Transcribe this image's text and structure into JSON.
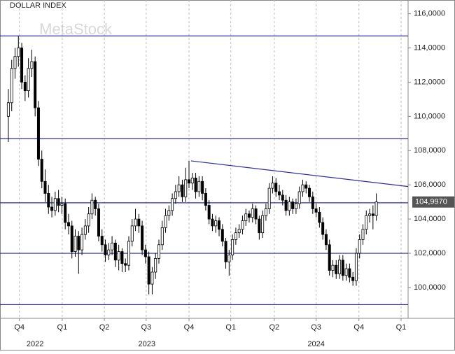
{
  "chart_data": {
    "type": "candlestick",
    "title": "DOLLAR INDEX",
    "watermark": "MetaStock",
    "ohlc": [
      [
        110.0,
        111.6,
        108.5,
        110.8
      ],
      [
        110.8,
        113.3,
        110.3,
        112.8
      ],
      [
        112.8,
        114.0,
        112.2,
        113.5
      ],
      [
        113.5,
        114.7,
        112.9,
        114.0
      ],
      [
        114.0,
        114.3,
        111.6,
        112.0
      ],
      [
        112.0,
        112.4,
        110.9,
        111.5
      ],
      [
        111.5,
        113.4,
        111.1,
        112.8
      ],
      [
        112.8,
        113.9,
        112.3,
        113.2
      ],
      [
        113.2,
        113.5,
        110.0,
        110.5
      ],
      [
        110.5,
        110.9,
        107.1,
        107.5
      ],
      [
        107.5,
        108.0,
        105.8,
        106.2
      ],
      [
        106.2,
        106.9,
        105.0,
        105.5
      ],
      [
        105.5,
        106.0,
        104.3,
        104.7
      ],
      [
        104.7,
        105.3,
        104.1,
        104.5
      ],
      [
        104.5,
        105.6,
        104.2,
        105.2
      ],
      [
        105.2,
        105.7,
        104.4,
        104.8
      ],
      [
        104.8,
        105.3,
        104.3,
        104.9
      ],
      [
        104.9,
        105.2,
        103.4,
        103.8
      ],
      [
        103.8,
        104.3,
        103.1,
        103.6
      ],
      [
        103.6,
        103.9,
        101.7,
        102.1
      ],
      [
        102.1,
        103.4,
        101.8,
        103.0
      ],
      [
        103.0,
        103.3,
        100.8,
        102.2
      ],
      [
        102.2,
        103.5,
        101.9,
        103.1
      ],
      [
        103.1,
        104.0,
        102.8,
        103.6
      ],
      [
        103.6,
        104.7,
        103.2,
        104.3
      ],
      [
        104.3,
        105.5,
        104.0,
        105.1
      ],
      [
        105.1,
        105.3,
        104.2,
        104.6
      ],
      [
        104.6,
        104.9,
        102.7,
        103.0
      ],
      [
        103.0,
        103.4,
        102.1,
        102.5
      ],
      [
        102.5,
        102.8,
        101.5,
        101.9
      ],
      [
        101.9,
        102.6,
        101.6,
        102.2
      ],
      [
        102.2,
        103.0,
        101.9,
        102.6
      ],
      [
        102.6,
        102.8,
        101.2,
        101.6
      ],
      [
        101.6,
        102.5,
        101.0,
        102.1
      ],
      [
        102.1,
        102.3,
        100.9,
        101.4
      ],
      [
        101.4,
        101.7,
        100.9,
        101.3
      ],
      [
        101.3,
        103.0,
        101.0,
        102.7
      ],
      [
        102.7,
        104.0,
        102.4,
        103.6
      ],
      [
        103.6,
        104.6,
        103.3,
        104.0
      ],
      [
        104.0,
        104.3,
        103.2,
        103.6
      ],
      [
        103.6,
        103.9,
        101.9,
        102.2
      ],
      [
        102.2,
        102.5,
        101.4,
        101.8
      ],
      [
        101.8,
        102.1,
        99.6,
        100.2
      ],
      [
        100.2,
        101.2,
        99.6,
        100.9
      ],
      [
        100.9,
        102.0,
        100.5,
        101.7
      ],
      [
        101.7,
        102.8,
        101.4,
        102.5
      ],
      [
        102.5,
        103.9,
        102.2,
        103.5
      ],
      [
        103.5,
        104.6,
        103.2,
        104.2
      ],
      [
        104.2,
        104.8,
        103.9,
        104.5
      ],
      [
        104.5,
        105.5,
        104.2,
        105.2
      ],
      [
        105.2,
        106.0,
        104.9,
        105.6
      ],
      [
        105.6,
        106.5,
        105.3,
        106.0
      ],
      [
        106.0,
        106.3,
        105.0,
        105.3
      ],
      [
        105.3,
        107.0,
        105.0,
        106.3
      ],
      [
        106.3,
        107.4,
        105.8,
        106.1
      ],
      [
        106.1,
        106.7,
        105.7,
        106.4
      ],
      [
        106.4,
        106.7,
        105.2,
        105.6
      ],
      [
        105.6,
        106.5,
        105.3,
        106.2
      ],
      [
        106.2,
        106.5,
        105.1,
        105.5
      ],
      [
        105.5,
        105.8,
        104.5,
        104.8
      ],
      [
        104.8,
        105.1,
        103.7,
        104.0
      ],
      [
        104.0,
        104.3,
        103.3,
        103.6
      ],
      [
        103.6,
        104.2,
        103.2,
        103.9
      ],
      [
        103.9,
        104.1,
        103.0,
        103.4
      ],
      [
        103.4,
        103.7,
        102.4,
        102.7
      ],
      [
        102.7,
        102.9,
        101.1,
        101.5
      ],
      [
        101.5,
        102.2,
        100.7,
        101.9
      ],
      [
        101.9,
        103.1,
        101.6,
        102.8
      ],
      [
        102.8,
        103.5,
        102.5,
        103.2
      ],
      [
        103.2,
        103.7,
        102.9,
        103.4
      ],
      [
        103.4,
        104.2,
        103.1,
        103.9
      ],
      [
        103.9,
        104.6,
        103.6,
        104.3
      ],
      [
        104.3,
        104.5,
        103.8,
        104.1
      ],
      [
        104.1,
        104.9,
        103.8,
        104.6
      ],
      [
        104.6,
        104.8,
        103.7,
        104.0
      ],
      [
        104.0,
        104.2,
        102.8,
        103.2
      ],
      [
        103.2,
        104.5,
        102.9,
        104.2
      ],
      [
        104.2,
        104.9,
        103.9,
        104.6
      ],
      [
        104.6,
        106.1,
        104.3,
        105.8
      ],
      [
        105.8,
        106.5,
        105.5,
        106.1
      ],
      [
        106.1,
        106.4,
        105.3,
        105.6
      ],
      [
        105.6,
        106.0,
        105.1,
        105.4
      ],
      [
        105.4,
        105.7,
        104.8,
        105.1
      ],
      [
        105.1,
        105.4,
        104.2,
        104.5
      ],
      [
        104.5,
        105.3,
        104.2,
        105.0
      ],
      [
        105.0,
        105.2,
        104.3,
        104.6
      ],
      [
        104.6,
        105.2,
        104.3,
        104.9
      ],
      [
        104.9,
        105.9,
        104.6,
        105.6
      ],
      [
        105.6,
        106.3,
        105.3,
        106.0
      ],
      [
        106.0,
        106.2,
        105.5,
        105.8
      ],
      [
        105.8,
        106.0,
        105.0,
        105.3
      ],
      [
        105.3,
        105.6,
        104.3,
        104.6
      ],
      [
        104.6,
        104.9,
        104.1,
        104.4
      ],
      [
        104.4,
        104.7,
        103.5,
        103.8
      ],
      [
        103.8,
        104.1,
        102.8,
        103.1
      ],
      [
        103.1,
        103.4,
        102.2,
        102.5
      ],
      [
        102.5,
        102.8,
        100.7,
        101.0
      ],
      [
        101.0,
        101.6,
        100.6,
        101.3
      ],
      [
        101.3,
        101.6,
        100.5,
        100.8
      ],
      [
        100.8,
        101.9,
        100.5,
        101.6
      ],
      [
        101.6,
        101.9,
        100.4,
        100.7
      ],
      [
        100.7,
        101.4,
        100.4,
        101.1
      ],
      [
        101.1,
        101.4,
        100.3,
        100.6
      ],
      [
        100.6,
        100.9,
        100.1,
        100.4
      ],
      [
        100.4,
        102.3,
        100.1,
        102.0
      ],
      [
        102.0,
        103.1,
        101.7,
        102.8
      ],
      [
        102.8,
        103.7,
        102.5,
        103.4
      ],
      [
        103.4,
        104.5,
        103.1,
        104.2
      ],
      [
        104.2,
        104.6,
        103.8,
        104.3
      ],
      [
        104.3,
        104.8,
        103.4,
        104.2
      ],
      [
        104.2,
        105.5,
        103.9,
        105.0
      ]
    ],
    "xlim": [
      -2.5,
      119.5
    ],
    "ylim": [
      98.2,
      116.8
    ],
    "yticks": [
      {
        "value": 100,
        "label": "100,0000"
      },
      {
        "value": 102,
        "label": "102,0000"
      },
      {
        "value": 104,
        "label": "104,0000"
      },
      {
        "value": 106,
        "label": "106,0000"
      },
      {
        "value": 108,
        "label": "108,0000"
      },
      {
        "value": 110,
        "label": "110,0000"
      },
      {
        "value": 112,
        "label": "112,0000"
      },
      {
        "value": 114,
        "label": "114,0000"
      },
      {
        "value": 116,
        "label": "116,0000"
      }
    ],
    "xticks": [
      {
        "value": 3.3,
        "label": "Q4"
      },
      {
        "value": 16.1,
        "label": "Q1"
      },
      {
        "value": 28.7,
        "label": "Q2"
      },
      {
        "value": 41.2,
        "label": "Q3"
      },
      {
        "value": 54,
        "label": "Q4"
      },
      {
        "value": 66.5,
        "label": "Q1"
      },
      {
        "value": 79.5,
        "label": "Q2"
      },
      {
        "value": 92,
        "label": "Q3"
      },
      {
        "value": 104.8,
        "label": "Q4"
      },
      {
        "value": 117.4,
        "label": "Q1"
      }
    ],
    "years": [
      {
        "value": 8,
        "label": "2022"
      },
      {
        "value": 41.4,
        "label": "2023"
      },
      {
        "value": 92,
        "label": "2024"
      }
    ],
    "levels": [
      114.7,
      108.7,
      104.95,
      102,
      99
    ],
    "level_color": "#2b2ba8",
    "trendline": {
      "x": [
        54.6,
        119.5
      ],
      "y": [
        107.4,
        105.9
      ]
    },
    "last_price": {
      "value": 104.997,
      "label": "104,9970"
    },
    "grid": true
  }
}
